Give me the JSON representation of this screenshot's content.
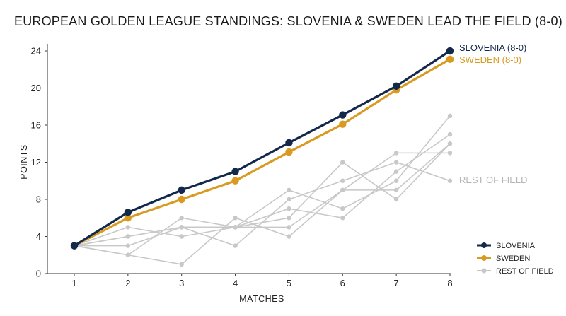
{
  "chart_data": {
    "type": "line",
    "title": "EUROPEAN GOLDEN LEAGUE STANDINGS: SLOVENIA & SWEDEN LEAD THE FIELD (8-0)",
    "xlabel": "MATCHES",
    "ylabel": "POINTS",
    "x": [
      1,
      2,
      3,
      4,
      5,
      6,
      7,
      8
    ],
    "x_ticks": [
      "1",
      "2",
      "3",
      "4",
      "5",
      "6",
      "7",
      "8"
    ],
    "y_ticks": [
      "0",
      "4",
      "8",
      "12",
      "16",
      "20",
      "24"
    ],
    "ylim": [
      0,
      24
    ],
    "xlim": [
      1,
      8
    ],
    "grid": false,
    "legend_position": "bottom-right",
    "colors": {
      "slovenia": "#13294b",
      "sweden": "#d99a22",
      "rest": "#c8c8c8"
    },
    "series": [
      {
        "name": "SLOVENIA",
        "end_label": "SLOVENIA (8-0)",
        "role": "highlight",
        "color": "#13294b",
        "values": [
          3,
          6.6,
          9,
          11,
          14.1,
          17.1,
          20.2,
          24
        ]
      },
      {
        "name": "SWEDEN",
        "end_label": "SWEDEN (8-0)",
        "role": "highlight",
        "color": "#d99a22",
        "values": [
          3,
          6,
          8,
          10,
          13.1,
          16.1,
          19.8,
          23.1
        ]
      },
      {
        "name": "REST OF FIELD",
        "role": "context",
        "color": "#c8c8c8",
        "values": [
          3,
          5,
          4,
          5,
          9,
          7,
          10,
          17
        ]
      },
      {
        "name": "REST OF FIELD",
        "role": "context",
        "color": "#c8c8c8",
        "values": [
          3,
          4,
          5,
          5,
          7,
          6,
          11,
          15
        ]
      },
      {
        "name": "REST OF FIELD",
        "role": "context",
        "color": "#c8c8c8",
        "values": [
          3,
          3,
          5,
          5,
          5,
          9,
          13,
          13
        ]
      },
      {
        "name": "REST OF FIELD",
        "role": "context",
        "color": "#c8c8c8",
        "values": [
          3,
          2,
          6,
          5,
          6,
          12,
          8,
          14
        ]
      },
      {
        "name": "REST OF FIELD",
        "role": "context",
        "color": "#c8c8c8",
        "values": [
          3,
          4,
          5,
          3,
          8,
          10,
          12,
          10
        ]
      },
      {
        "name": "REST OF FIELD",
        "role": "context",
        "color": "#c8c8c8",
        "values": [
          3,
          2,
          1,
          6,
          4,
          9,
          9,
          14
        ]
      }
    ],
    "annotations": [
      {
        "text": "REST OF FIELD",
        "color": "#b5b5b5"
      }
    ],
    "legend": [
      {
        "label": "SLOVENIA",
        "color": "#13294b"
      },
      {
        "label": "SWEDEN",
        "color": "#d99a22"
      },
      {
        "label": "REST OF FIELD",
        "color": "#c8c8c8"
      }
    ]
  }
}
